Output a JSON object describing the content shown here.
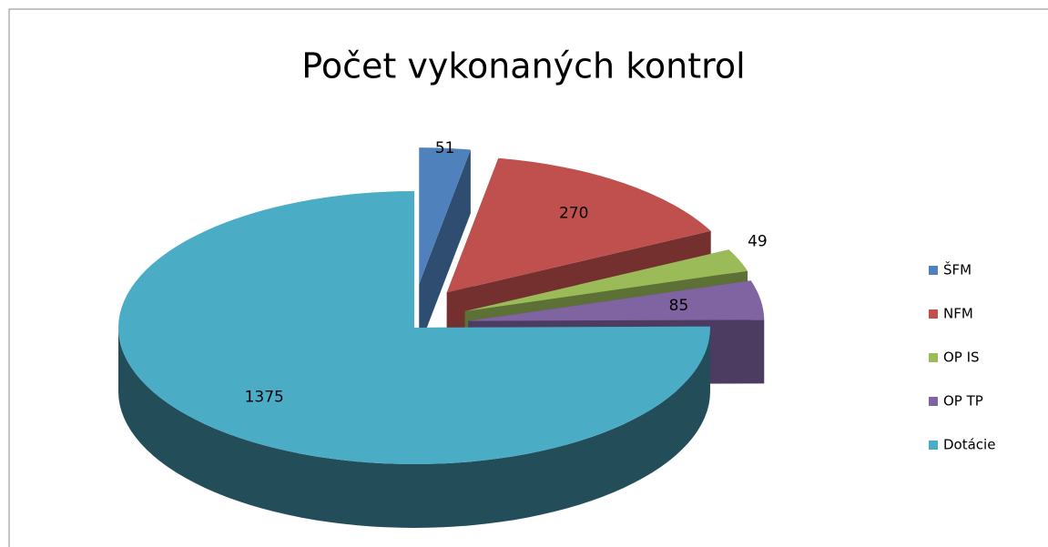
{
  "chart_data": {
    "type": "pie3d",
    "title": "Počet vykonaných kontrol",
    "categories": [
      "ŠFM",
      "NFM",
      "OP IS",
      "OP TP",
      "Dotácie"
    ],
    "values": [
      51,
      270,
      49,
      85,
      1375
    ],
    "colors": [
      "#4f81bd",
      "#c0504d",
      "#9bbb59",
      "#8064a2",
      "#4bacc6"
    ],
    "legend": "right"
  }
}
